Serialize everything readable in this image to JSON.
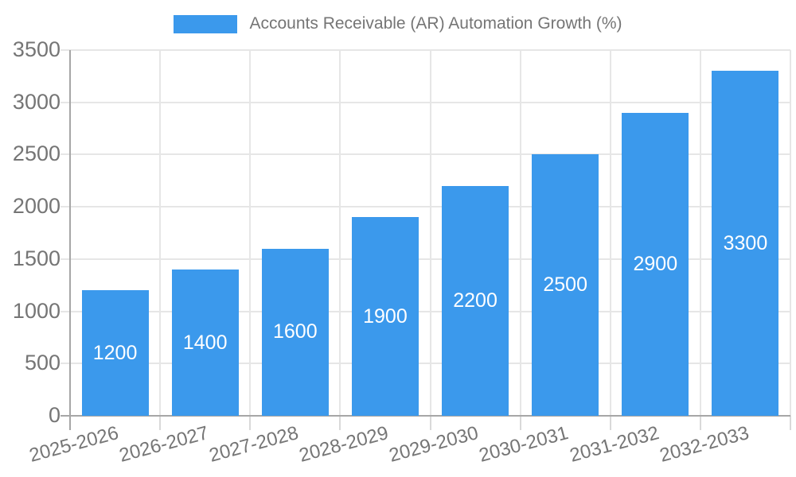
{
  "chart_data": {
    "type": "bar",
    "title": "Accounts Receivable (AR) Automation Growth (%)",
    "legend": [
      "Accounts Receivable (AR) Automation Growth (%)"
    ],
    "legend_position": "top-center",
    "categories": [
      "2025-2026",
      "2026-2027",
      "2027-2028",
      "2028-2029",
      "2029-2030",
      "2030-2031",
      "2031-2032",
      "2032-2033"
    ],
    "values": [
      1200,
      1400,
      1600,
      1900,
      2200,
      2500,
      2900,
      3300
    ],
    "bar_value_labels": [
      "1200",
      "1400",
      "1600",
      "1900",
      "2200",
      "2500",
      "2900",
      "3300"
    ],
    "xlabel": "",
    "ylabel": "",
    "ylim": [
      0,
      3500
    ],
    "ytick_step": 500,
    "ytick_labels": [
      "0",
      "500",
      "1000",
      "1500",
      "2000",
      "2500",
      "3000",
      "3500"
    ],
    "grid": true,
    "value_label_position": "inside-center",
    "colors": {
      "bar": "#3b99ec",
      "bar_label": "#ffffff",
      "grid": "#e6e6e6",
      "axis": "#a6a6a6",
      "xtick": "#d9d9d9",
      "text": "#757575"
    }
  }
}
